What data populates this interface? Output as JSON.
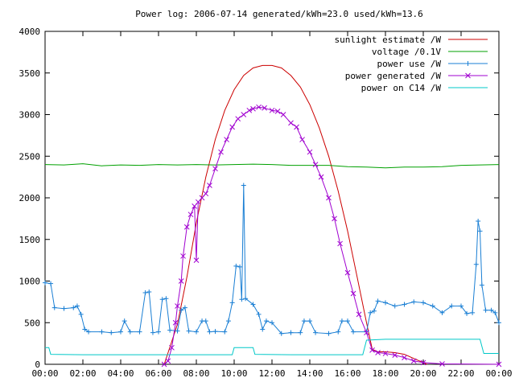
{
  "chart_data": {
    "type": "line",
    "title": "Power log: 2006-07-14 generated/kWh=23.0 used/kWh=13.6",
    "x_ticks": [
      "00:00",
      "02:00",
      "04:00",
      "06:00",
      "08:00",
      "10:00",
      "12:00",
      "14:00",
      "16:00",
      "18:00",
      "20:00",
      "22:00",
      "00:00"
    ],
    "y_ticks": [
      "0",
      "500",
      "1000",
      "1500",
      "2000",
      "2500",
      "3000",
      "3500",
      "4000"
    ],
    "xlim_hours": [
      0,
      24
    ],
    "ylim": [
      0,
      4000
    ],
    "grid": false,
    "legend_position": "top-right",
    "series": [
      {
        "name": "sunlight estimate /W",
        "color": "#cc0000",
        "style": "line",
        "points": [
          [
            6.3,
            0
          ],
          [
            7,
            480
          ],
          [
            7.5,
            1050
          ],
          [
            8,
            1700
          ],
          [
            8.5,
            2250
          ],
          [
            9,
            2700
          ],
          [
            9.5,
            3050
          ],
          [
            10,
            3300
          ],
          [
            10.5,
            3470
          ],
          [
            11,
            3560
          ],
          [
            11.5,
            3590
          ],
          [
            12,
            3590
          ],
          [
            12.5,
            3560
          ],
          [
            13,
            3470
          ],
          [
            13.5,
            3330
          ],
          [
            14,
            3120
          ],
          [
            14.5,
            2840
          ],
          [
            15,
            2500
          ],
          [
            15.5,
            2080
          ],
          [
            16,
            1600
          ],
          [
            16.5,
            1050
          ],
          [
            17,
            500
          ],
          [
            17.3,
            180
          ],
          [
            17.6,
            150
          ],
          [
            18,
            150
          ],
          [
            18.5,
            140
          ],
          [
            19,
            120
          ],
          [
            19.5,
            70
          ],
          [
            20,
            20
          ],
          [
            20.2,
            0
          ]
        ]
      },
      {
        "name": "voltage /0.1V",
        "color": "#00a000",
        "style": "line",
        "points": [
          [
            0,
            2400
          ],
          [
            1,
            2395
          ],
          [
            2,
            2410
          ],
          [
            3,
            2385
          ],
          [
            4,
            2395
          ],
          [
            5,
            2390
          ],
          [
            6,
            2400
          ],
          [
            7,
            2395
          ],
          [
            8,
            2400
          ],
          [
            9,
            2395
          ],
          [
            10,
            2400
          ],
          [
            11,
            2405
          ],
          [
            12,
            2400
          ],
          [
            13,
            2390
          ],
          [
            14,
            2390
          ],
          [
            15,
            2390
          ],
          [
            16,
            2375
          ],
          [
            17,
            2370
          ],
          [
            18,
            2360
          ],
          [
            19,
            2370
          ],
          [
            20,
            2370
          ],
          [
            21,
            2375
          ],
          [
            22,
            2390
          ],
          [
            23,
            2395
          ],
          [
            24,
            2400
          ]
        ]
      },
      {
        "name": "power use /W",
        "color": "#1a7fd4",
        "style": "line-points",
        "points": [
          [
            0,
            980
          ],
          [
            0.3,
            970
          ],
          [
            0.5,
            680
          ],
          [
            1,
            670
          ],
          [
            1.5,
            680
          ],
          [
            1.7,
            700
          ],
          [
            1.9,
            600
          ],
          [
            2.1,
            420
          ],
          [
            2.3,
            390
          ],
          [
            3,
            390
          ],
          [
            3.5,
            380
          ],
          [
            4,
            390
          ],
          [
            4.2,
            520
          ],
          [
            4.5,
            390
          ],
          [
            5,
            390
          ],
          [
            5.3,
            860
          ],
          [
            5.5,
            870
          ],
          [
            5.7,
            380
          ],
          [
            6,
            390
          ],
          [
            6.2,
            780
          ],
          [
            6.4,
            790
          ],
          [
            6.6,
            410
          ],
          [
            7,
            400
          ],
          [
            7.2,
            650
          ],
          [
            7.4,
            680
          ],
          [
            7.6,
            400
          ],
          [
            8,
            390
          ],
          [
            8.3,
            520
          ],
          [
            8.5,
            520
          ],
          [
            8.7,
            390
          ],
          [
            9,
            395
          ],
          [
            9.5,
            390
          ],
          [
            9.7,
            520
          ],
          [
            9.9,
            740
          ],
          [
            10.1,
            1180
          ],
          [
            10.3,
            1170
          ],
          [
            10.4,
            780
          ],
          [
            10.5,
            2150
          ],
          [
            10.6,
            790
          ],
          [
            11,
            720
          ],
          [
            11.3,
            600
          ],
          [
            11.5,
            420
          ],
          [
            11.7,
            520
          ],
          [
            12,
            500
          ],
          [
            12.5,
            370
          ],
          [
            13,
            380
          ],
          [
            13.5,
            380
          ],
          [
            13.7,
            520
          ],
          [
            14,
            520
          ],
          [
            14.3,
            380
          ],
          [
            15,
            370
          ],
          [
            15.5,
            390
          ],
          [
            15.7,
            520
          ],
          [
            16,
            520
          ],
          [
            16.3,
            390
          ],
          [
            17,
            390
          ],
          [
            17.2,
            620
          ],
          [
            17.4,
            640
          ],
          [
            17.6,
            760
          ],
          [
            18,
            740
          ],
          [
            18.5,
            700
          ],
          [
            19,
            720
          ],
          [
            19.5,
            750
          ],
          [
            20,
            740
          ],
          [
            20.5,
            700
          ],
          [
            21,
            620
          ],
          [
            21.5,
            700
          ],
          [
            22,
            700
          ],
          [
            22.3,
            610
          ],
          [
            22.6,
            620
          ],
          [
            22.8,
            1200
          ],
          [
            22.9,
            1720
          ],
          [
            23,
            1600
          ],
          [
            23.1,
            950
          ],
          [
            23.3,
            650
          ],
          [
            23.6,
            650
          ],
          [
            23.8,
            620
          ],
          [
            24,
            500
          ]
        ]
      },
      {
        "name": "power generated /W",
        "color": "#a000d0",
        "style": "line-points",
        "points": [
          [
            6.3,
            0
          ],
          [
            6.5,
            40
          ],
          [
            6.7,
            200
          ],
          [
            6.9,
            500
          ],
          [
            7,
            700
          ],
          [
            7.2,
            1000
          ],
          [
            7.3,
            1300
          ],
          [
            7.5,
            1650
          ],
          [
            7.7,
            1800
          ],
          [
            7.9,
            1900
          ],
          [
            8,
            1250
          ],
          [
            8.1,
            1950
          ],
          [
            8.3,
            2000
          ],
          [
            8.5,
            2050
          ],
          [
            8.7,
            2150
          ],
          [
            9,
            2350
          ],
          [
            9.3,
            2550
          ],
          [
            9.6,
            2700
          ],
          [
            9.9,
            2850
          ],
          [
            10.2,
            2950
          ],
          [
            10.5,
            3000
          ],
          [
            10.8,
            3050
          ],
          [
            11,
            3070
          ],
          [
            11.3,
            3090
          ],
          [
            11.6,
            3080
          ],
          [
            12,
            3050
          ],
          [
            12.3,
            3040
          ],
          [
            12.6,
            3000
          ],
          [
            13,
            2900
          ],
          [
            13.3,
            2850
          ],
          [
            13.6,
            2700
          ],
          [
            14,
            2550
          ],
          [
            14.3,
            2400
          ],
          [
            14.6,
            2250
          ],
          [
            15,
            2000
          ],
          [
            15.3,
            1750
          ],
          [
            15.6,
            1450
          ],
          [
            16,
            1100
          ],
          [
            16.3,
            850
          ],
          [
            16.6,
            600
          ],
          [
            17,
            380
          ],
          [
            17.3,
            170
          ],
          [
            17.6,
            140
          ],
          [
            18,
            130
          ],
          [
            18.5,
            110
          ],
          [
            19,
            80
          ],
          [
            19.5,
            40
          ],
          [
            20,
            20
          ],
          [
            21,
            5
          ],
          [
            24,
            0
          ]
        ]
      },
      {
        "name": "power on C14 /W",
        "color": "#00c8c8",
        "style": "line",
        "points": [
          [
            0,
            200
          ],
          [
            0.2,
            200
          ],
          [
            0.3,
            120
          ],
          [
            2,
            115
          ],
          [
            4,
            115
          ],
          [
            6,
            115
          ],
          [
            8,
            115
          ],
          [
            9,
            115
          ],
          [
            9.9,
            115
          ],
          [
            10,
            200
          ],
          [
            11,
            200
          ],
          [
            11.1,
            120
          ],
          [
            13,
            115
          ],
          [
            15,
            115
          ],
          [
            16.8,
            115
          ],
          [
            17,
            290
          ],
          [
            18,
            300
          ],
          [
            20,
            300
          ],
          [
            21.5,
            300
          ],
          [
            22,
            300
          ],
          [
            23,
            300
          ],
          [
            23.2,
            130
          ],
          [
            24,
            130
          ]
        ]
      }
    ]
  }
}
